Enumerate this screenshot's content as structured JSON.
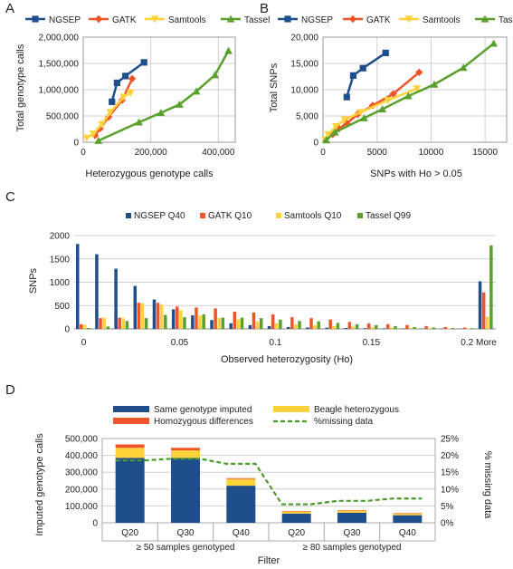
{
  "chart_data": [
    {
      "panel": "A",
      "type": "line",
      "xlabel": "Heterozygous genotype calls",
      "ylabel": "Total genotype calls",
      "xlim": [
        0,
        450000
      ],
      "ylim": [
        0,
        2000000
      ],
      "xticks": [
        0,
        200000,
        400000
      ],
      "xtick_labels": [
        "0",
        "200,000",
        "400,000"
      ],
      "yticks": [
        0,
        500000,
        1000000,
        1500000,
        2000000
      ],
      "ytick_labels": [
        "0",
        "500,000",
        "1,000,000",
        "1,500,000",
        "2,000,000"
      ],
      "legend": "top",
      "series": [
        {
          "name": "NGSEP",
          "color": "#1f4e8c",
          "marker": "square",
          "points": [
            [
              85000,
              770000
            ],
            [
              100000,
              1130000
            ],
            [
              125000,
              1260000
            ],
            [
              180000,
              1520000
            ]
          ]
        },
        {
          "name": "GATK",
          "color": "#f0542a",
          "marker": "diamond",
          "points": [
            [
              35000,
              130000
            ],
            [
              50000,
              260000
            ],
            [
              75000,
              480000
            ],
            [
              115000,
              800000
            ],
            [
              145000,
              1210000
            ]
          ]
        },
        {
          "name": "Samtools",
          "color": "#ffd23a",
          "marker": "down-triangle",
          "points": [
            [
              10000,
              80000
            ],
            [
              30000,
              160000
            ],
            [
              55000,
              340000
            ],
            [
              80000,
              570000
            ],
            [
              120000,
              860000
            ],
            [
              140000,
              940000
            ]
          ]
        },
        {
          "name": "Tassel",
          "color": "#5aa02c",
          "marker": "triangle",
          "points": [
            [
              45000,
              30000
            ],
            [
              165000,
              380000
            ],
            [
              230000,
              560000
            ],
            [
              285000,
              720000
            ],
            [
              335000,
              970000
            ],
            [
              390000,
              1280000
            ],
            [
              430000,
              1740000
            ]
          ]
        }
      ]
    },
    {
      "panel": "B",
      "type": "line",
      "xlabel": "SNPs with Ho > 0.05",
      "ylabel": "Total SNPs",
      "xlim": [
        0,
        17000
      ],
      "ylim": [
        0,
        20000
      ],
      "xticks": [
        0,
        5000,
        10000,
        15000
      ],
      "xtick_labels": [
        "0",
        "5000",
        "10000",
        "15000"
      ],
      "yticks": [
        0,
        5000,
        10000,
        15000,
        20000
      ],
      "ytick_labels": [
        "0",
        "5,000",
        "10,000",
        "15,000",
        "20,000"
      ],
      "legend": "top",
      "series": [
        {
          "name": "NGSEP",
          "color": "#1f4e8c",
          "marker": "square",
          "points": [
            [
              2200,
              8600
            ],
            [
              2800,
              12700
            ],
            [
              3700,
              14100
            ],
            [
              5800,
              17000
            ]
          ]
        },
        {
          "name": "GATK",
          "color": "#f0542a",
          "marker": "diamond",
          "points": [
            [
              900,
              1500
            ],
            [
              1500,
              2600
            ],
            [
              2200,
              3600
            ],
            [
              3200,
              5300
            ],
            [
              4600,
              7000
            ],
            [
              6500,
              9200
            ],
            [
              8900,
              13300
            ]
          ]
        },
        {
          "name": "Samtools",
          "color": "#ffd23a",
          "marker": "down-triangle",
          "points": [
            [
              200,
              500
            ],
            [
              500,
              1500
            ],
            [
              1200,
              3000
            ],
            [
              2000,
              4300
            ],
            [
              3500,
              5700
            ],
            [
              6000,
              8000
            ],
            [
              8700,
              10200
            ]
          ]
        },
        {
          "name": "Tassel",
          "color": "#5aa02c",
          "marker": "triangle",
          "points": [
            [
              300,
              400
            ],
            [
              1100,
              1900
            ],
            [
              3800,
              4600
            ],
            [
              5500,
              6300
            ],
            [
              7900,
              8800
            ],
            [
              10300,
              11000
            ],
            [
              13000,
              14200
            ],
            [
              15800,
              18800
            ]
          ]
        }
      ]
    },
    {
      "panel": "C",
      "type": "bar",
      "xlabel": "Observed heterozygosity (Ho)",
      "ylabel": "SNPs",
      "ylim": [
        0,
        2000
      ],
      "yticks": [
        0,
        500,
        1000,
        1500,
        2000
      ],
      "ytick_labels": [
        "0",
        "500",
        "1000",
        "1500",
        "2000"
      ],
      "xtick_labels": [
        "0",
        "0.05",
        "0.1",
        "0.15",
        "0.2",
        "More"
      ],
      "xtick_bins": [
        0,
        5,
        10,
        15,
        20,
        21
      ],
      "bins": 22,
      "legend": "top",
      "series": [
        {
          "name": "NGSEP Q40",
          "color": "#1f4e8c",
          "values": [
            1820,
            1600,
            1290,
            920,
            630,
            420,
            290,
            190,
            120,
            80,
            60,
            40,
            30,
            25,
            20,
            15,
            12,
            10,
            8,
            6,
            5,
            1020
          ]
        },
        {
          "name": "GATK Q10",
          "color": "#f0542a",
          "values": [
            100,
            230,
            240,
            560,
            560,
            480,
            460,
            440,
            370,
            350,
            310,
            250,
            230,
            200,
            150,
            120,
            100,
            80,
            60,
            40,
            30,
            780
          ]
        },
        {
          "name": "Samtools Q10",
          "color": "#ffd23a",
          "values": [
            90,
            240,
            230,
            550,
            520,
            400,
            290,
            230,
            200,
            160,
            120,
            100,
            80,
            60,
            50,
            40,
            30,
            20,
            15,
            10,
            10,
            260
          ]
        },
        {
          "name": "Tassel Q99",
          "color": "#5aa02c",
          "values": [
            20,
            50,
            170,
            230,
            300,
            250,
            310,
            240,
            240,
            230,
            200,
            170,
            160,
            130,
            100,
            80,
            60,
            40,
            30,
            20,
            15,
            1790
          ]
        }
      ]
    },
    {
      "panel": "D",
      "type": "bar",
      "stacked": true,
      "xlabel": "Filter",
      "ylabel": "Imputed genotype calls",
      "y2label": "% missing data",
      "ylim": [
        0,
        500000
      ],
      "yticks": [
        0,
        100000,
        200000,
        300000,
        400000,
        500000
      ],
      "ytick_labels": [
        "0",
        "100,000",
        "200,000",
        "300,000",
        "400,000",
        "500,000"
      ],
      "y2lim": [
        0,
        25
      ],
      "y2ticks": [
        0,
        5,
        10,
        15,
        20,
        25
      ],
      "y2tick_labels": [
        "0%",
        "5%",
        "10%",
        "15%",
        "20%",
        "25%"
      ],
      "categories": [
        "Q20",
        "Q30",
        "Q40",
        "Q20",
        "Q30",
        "Q40"
      ],
      "groups": [
        {
          "label": "≥ 50 samples genotyped",
          "span": [
            0,
            2
          ]
        },
        {
          "label": "≥ 80 samples genotyped",
          "span": [
            3,
            5
          ]
        }
      ],
      "legend": "top",
      "series": [
        {
          "name": "Same genotype imputed",
          "color": "#1f4e8c",
          "values": [
            385000,
            385000,
            220000,
            55000,
            60000,
            45000
          ]
        },
        {
          "name": "Beagle heterozygous",
          "color": "#ffd23a",
          "values": [
            60000,
            45000,
            40000,
            12000,
            12000,
            10000
          ]
        },
        {
          "name": "Homozygous differences",
          "color": "#f0542a",
          "values": [
            20000,
            15000,
            5000,
            3000,
            3000,
            3000
          ]
        },
        {
          "name": "%missing data",
          "color": "#4c9a2a",
          "type": "dashed-line",
          "axis": "right",
          "values": [
            18.5,
            19,
            17.5,
            5.5,
            6.5,
            7.2
          ]
        }
      ]
    }
  ]
}
